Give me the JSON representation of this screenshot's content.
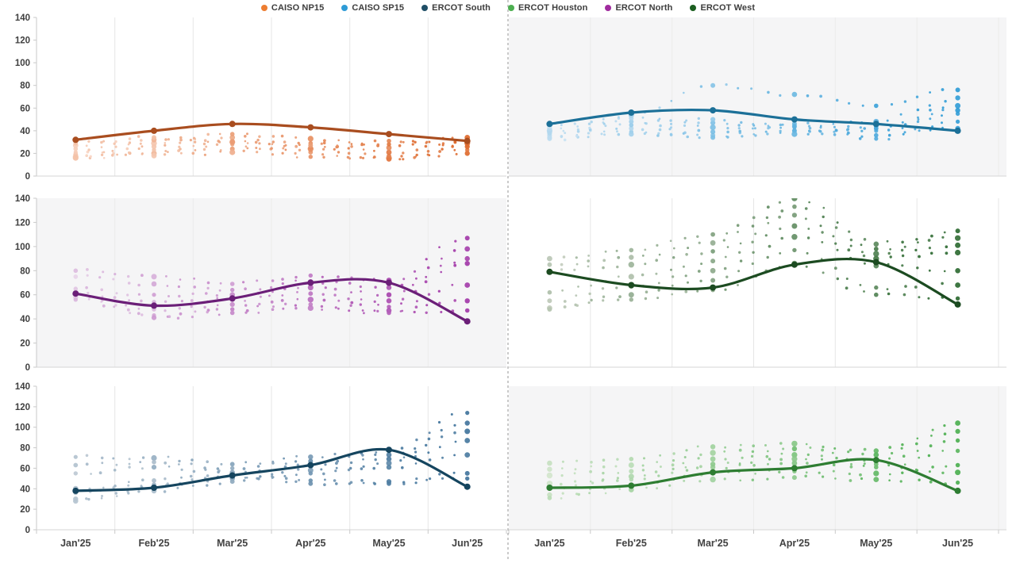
{
  "legend": {
    "items": [
      {
        "label": "CAISO NP15",
        "color": "#ED7D31"
      },
      {
        "label": "CAISO SP15",
        "color": "#2E9BD6"
      },
      {
        "label": "ERCOT South",
        "color": "#1F4E66"
      },
      {
        "label": "ERCOT Houston",
        "color": "#4CAF50"
      },
      {
        "label": "ERCOT North",
        "color": "#A02B9E"
      },
      {
        "label": "ERCOT West",
        "color": "#1B5E20"
      }
    ]
  },
  "divider": {
    "style": "dashed",
    "color": "#A8A8A8"
  },
  "axis_colors": {
    "tick_label": "#3f3f3f",
    "month_label": "#424242",
    "axis_line": "#c9c9c9",
    "grid_line_on_white": "#e6e6e6",
    "grid_line_on_gray": "#ebebeb",
    "panel_gray": "#f5f5f6"
  },
  "chart_data": {
    "type": "scatter",
    "layout": "3x2 small multiples, dashed column divider, trend line plus forward-curve dot fans",
    "title": "",
    "x_categories": [
      "Jan'25",
      "Feb'25",
      "Mar'25",
      "Apr'25",
      "May'25",
      "Jun'25"
    ],
    "ylim": [
      0,
      140
    ],
    "yticks": [
      0,
      20,
      40,
      60,
      80,
      100,
      120,
      140
    ],
    "grid": "vertical-only",
    "legend_position": "top-center",
    "series": [
      {
        "name": "CAISO NP15",
        "row": 0,
        "col": 0,
        "background": "#ffffff",
        "line_color": "#A94D1F",
        "dot_dark": "#DE6B2F",
        "dot_light": "#F6CDB8",
        "trend": [
          32,
          40,
          46,
          43,
          37,
          31
        ],
        "strands": [
          [
            17,
            20,
            24,
            17,
            16,
            20
          ],
          [
            19,
            23,
            28,
            21,
            15,
            23
          ],
          [
            21,
            26,
            31,
            25,
            18,
            26
          ],
          [
            24,
            29,
            34,
            29,
            21,
            29
          ],
          [
            27,
            32,
            37,
            33,
            25,
            32
          ],
          [
            29,
            34,
            30,
            24,
            28,
            34
          ],
          [
            16,
            18,
            21,
            27,
            31,
            27
          ]
        ]
      },
      {
        "name": "CAISO SP15",
        "row": 0,
        "col": 1,
        "background": "#f5f5f6",
        "line_color": "#1C7098",
        "dot_dark": "#2E9BD6",
        "dot_light": "#BCDCF0",
        "trend": [
          46,
          56,
          58,
          50,
          46,
          40
        ],
        "strands": [
          [
            34,
            39,
            36,
            40,
            36,
            42
          ],
          [
            36,
            42,
            39,
            43,
            33,
            48
          ],
          [
            38,
            45,
            43,
            46,
            40,
            55
          ],
          [
            40,
            48,
            47,
            40,
            44,
            62
          ],
          [
            42,
            51,
            50,
            44,
            48,
            69
          ],
          [
            44,
            54,
            80,
            72,
            62,
            76
          ],
          [
            33,
            37,
            34,
            37,
            42,
            58
          ]
        ]
      },
      {
        "name": "ERCOT North",
        "row": 1,
        "col": 0,
        "background": "#f5f5f6",
        "line_color": "#6B1F78",
        "dot_dark": "#A238A8",
        "dot_light": "#E0C4E2",
        "trend": [
          61,
          51,
          57,
          70,
          70,
          38
        ],
        "strands": [
          [
            80,
            75,
            69,
            76,
            72,
            107
          ],
          [
            75,
            69,
            64,
            71,
            66,
            98
          ],
          [
            65,
            60,
            60,
            66,
            60,
            90
          ],
          [
            62,
            54,
            56,
            61,
            55,
            86
          ],
          [
            58,
            48,
            52,
            56,
            50,
            68
          ],
          [
            61,
            43,
            48,
            52,
            47,
            55
          ],
          [
            56,
            41,
            45,
            49,
            45,
            47
          ]
        ]
      },
      {
        "name": "ERCOT West",
        "row": 1,
        "col": 1,
        "background": "#ffffff",
        "line_color": "#1C4B21",
        "dot_dark": "#2F6B33",
        "dot_light": "#B9C6B4",
        "trend": [
          79,
          68,
          66,
          85,
          87,
          52
        ],
        "strands": [
          [
            90,
            97,
            110,
            140,
            102,
            113
          ],
          [
            85,
            91,
            103,
            133,
            98,
            107
          ],
          [
            79,
            85,
            96,
            126,
            94,
            101
          ],
          [
            62,
            75,
            88,
            117,
            90,
            95
          ],
          [
            55,
            67,
            80,
            108,
            84,
            80
          ],
          [
            49,
            60,
            72,
            97,
            66,
            68
          ],
          [
            48,
            56,
            64,
            86,
            60,
            57
          ]
        ]
      },
      {
        "name": "ERCOT South",
        "row": 2,
        "col": 0,
        "background": "#ffffff",
        "line_color": "#15455F",
        "dot_dark": "#41749C",
        "dot_light": "#B5C4D0",
        "trend": [
          38,
          41,
          53,
          63,
          78,
          42
        ],
        "strands": [
          [
            71,
            70,
            64,
            71,
            77,
            114
          ],
          [
            63,
            66,
            60,
            67,
            73,
            104
          ],
          [
            55,
            61,
            56,
            63,
            69,
            96
          ],
          [
            30,
            42,
            50,
            58,
            65,
            87
          ],
          [
            28,
            38,
            47,
            55,
            61,
            73
          ],
          [
            36,
            44,
            52,
            48,
            47,
            55
          ],
          [
            40,
            48,
            56,
            45,
            45,
            50
          ]
        ]
      },
      {
        "name": "ERCOT Houston",
        "row": 2,
        "col": 1,
        "background": "#f5f5f6",
        "line_color": "#2E7D32",
        "dot_dark": "#4CAF50",
        "dot_light": "#C5E0C0",
        "trend": [
          41,
          43,
          56,
          60,
          68,
          38
        ],
        "strands": [
          [
            65,
            69,
            81,
            84,
            77,
            104
          ],
          [
            59,
            63,
            75,
            79,
            73,
            96
          ],
          [
            53,
            57,
            69,
            73,
            67,
            87
          ],
          [
            42,
            49,
            61,
            65,
            61,
            77
          ],
          [
            34,
            43,
            55,
            57,
            55,
            63
          ],
          [
            31,
            39,
            49,
            51,
            49,
            46
          ],
          [
            45,
            52,
            64,
            69,
            64,
            56
          ]
        ]
      }
    ]
  }
}
